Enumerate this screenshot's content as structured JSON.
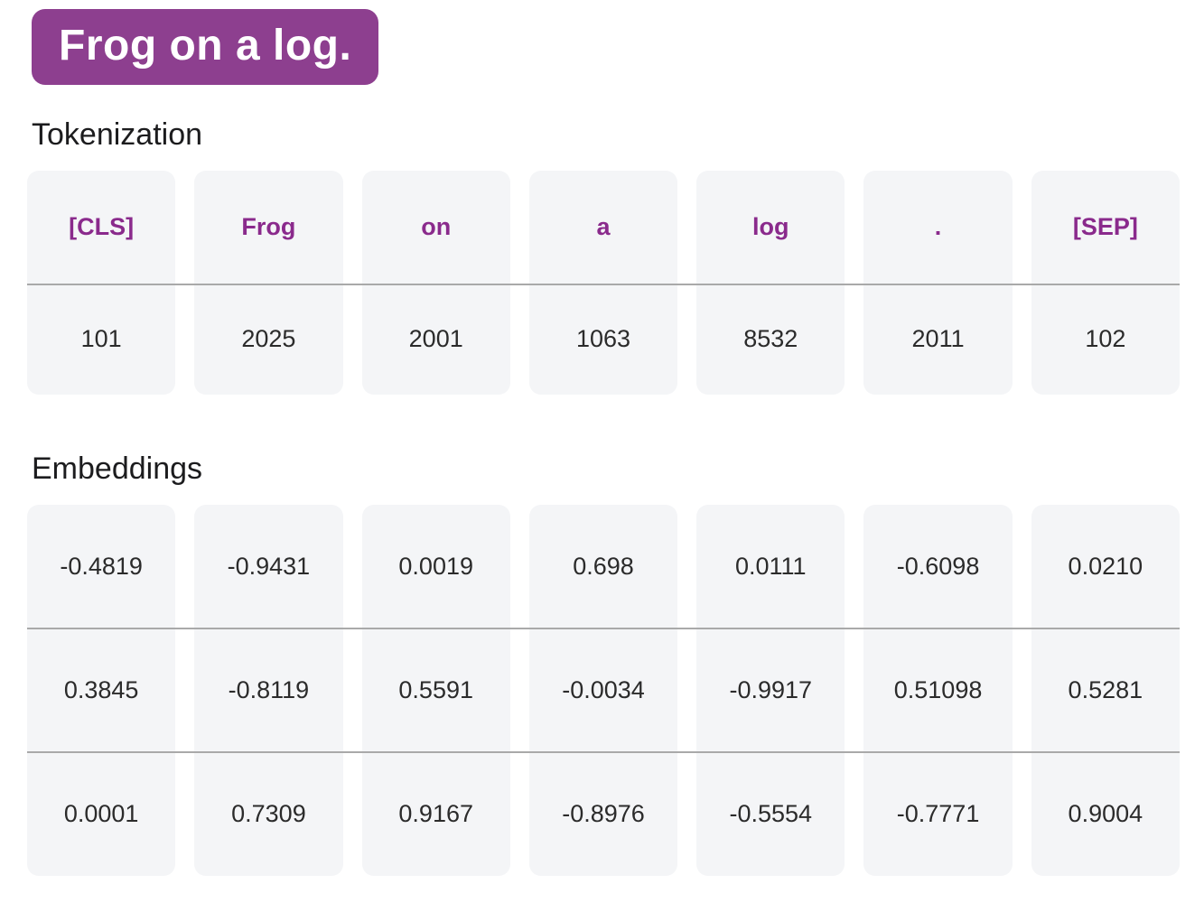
{
  "badge": {
    "text": "Frog on a log."
  },
  "tokenization": {
    "title": "Tokenization",
    "tokens": [
      "[CLS]",
      "Frog",
      "on",
      "a",
      "log",
      ".",
      "[SEP]"
    ],
    "ids": [
      "101",
      "2025",
      "2001",
      "1063",
      "8532",
      "2011",
      "102"
    ]
  },
  "embeddings": {
    "title": "Embeddings",
    "rows": [
      [
        "-0.4819",
        "-0.9431",
        "0.0019",
        "0.698",
        "0.0111",
        "-0.6098",
        "0.0210"
      ],
      [
        "0.3845",
        "-0.8119",
        "0.5591",
        "-0.0034",
        "-0.9917",
        "0.51098",
        "0.5281"
      ],
      [
        "0.0001",
        "0.7309",
        "0.9167",
        "-0.8976",
        "-0.5554",
        "-0.7771",
        "0.9004"
      ]
    ]
  },
  "colors": {
    "accent_badge": "#8d3f8f",
    "token_text": "#8a2a8c",
    "cell_background": "#f4f5f7",
    "divider_line": "#a9a9a9",
    "heading_text": "#1c1c1e",
    "value_text": "#2b2b2b",
    "page_background": "#ffffff"
  }
}
